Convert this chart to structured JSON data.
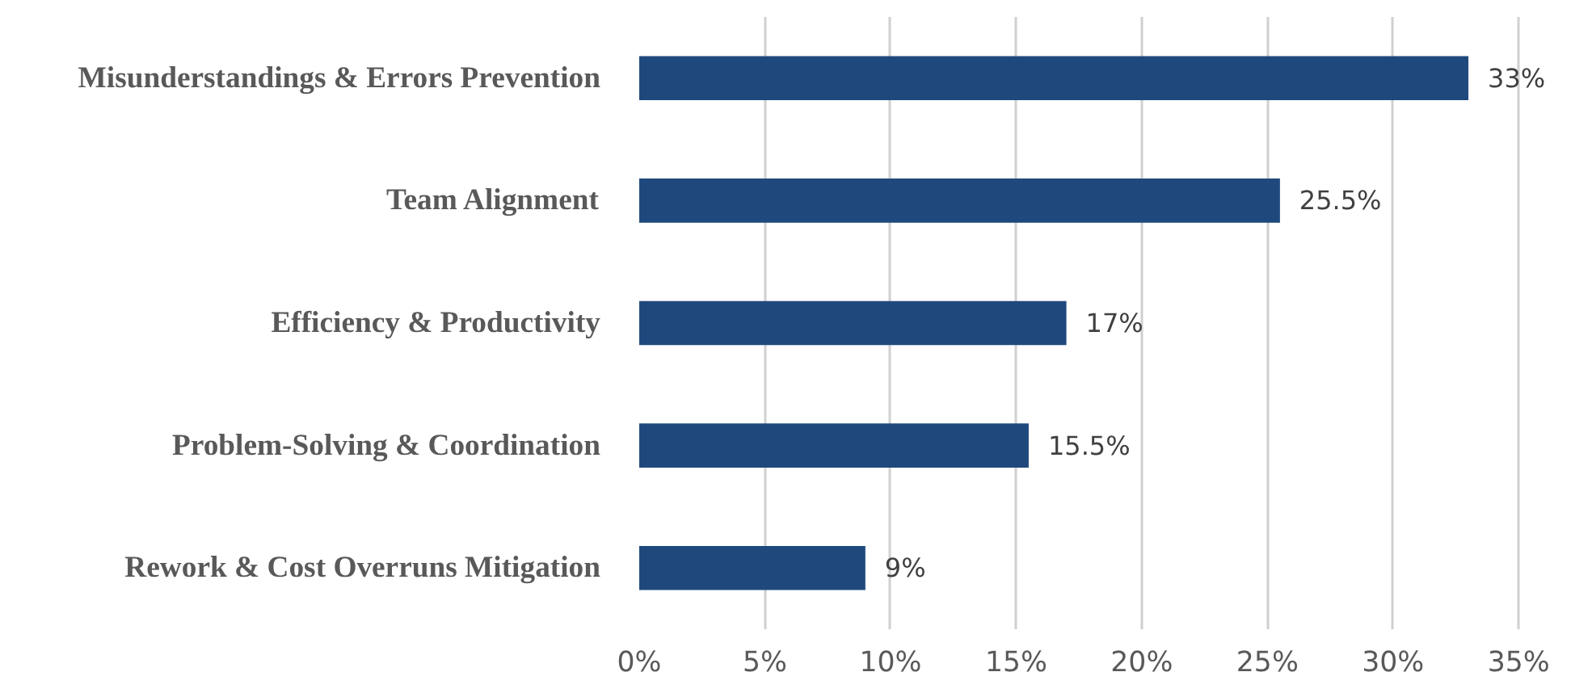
{
  "chart_data": {
    "type": "bar",
    "orientation": "horizontal",
    "categories": [
      "Misunderstandings & Errors Prevention",
      "Team Alignment",
      "Efficiency & Productivity",
      "Problem-Solving & Coordination",
      "Rework & Cost Overruns Mitigation"
    ],
    "values": [
      33,
      25.5,
      17,
      15.5,
      9
    ],
    "value_labels": [
      "33%",
      "25.5%",
      "17%",
      "15.5%",
      "9%"
    ],
    "color": "#1f497d",
    "xlim": [
      0,
      35
    ],
    "xticks": [
      {
        "value": 0,
        "label": "0%"
      },
      {
        "value": 5,
        "label": "5%"
      },
      {
        "value": 10,
        "label": "10%"
      },
      {
        "value": 15,
        "label": "15%"
      },
      {
        "value": 20,
        "label": "20%"
      },
      {
        "value": 25,
        "label": "25%"
      },
      {
        "value": 30,
        "label": "30%"
      },
      {
        "value": 35,
        "label": "35%"
      }
    ],
    "grid": "x"
  }
}
